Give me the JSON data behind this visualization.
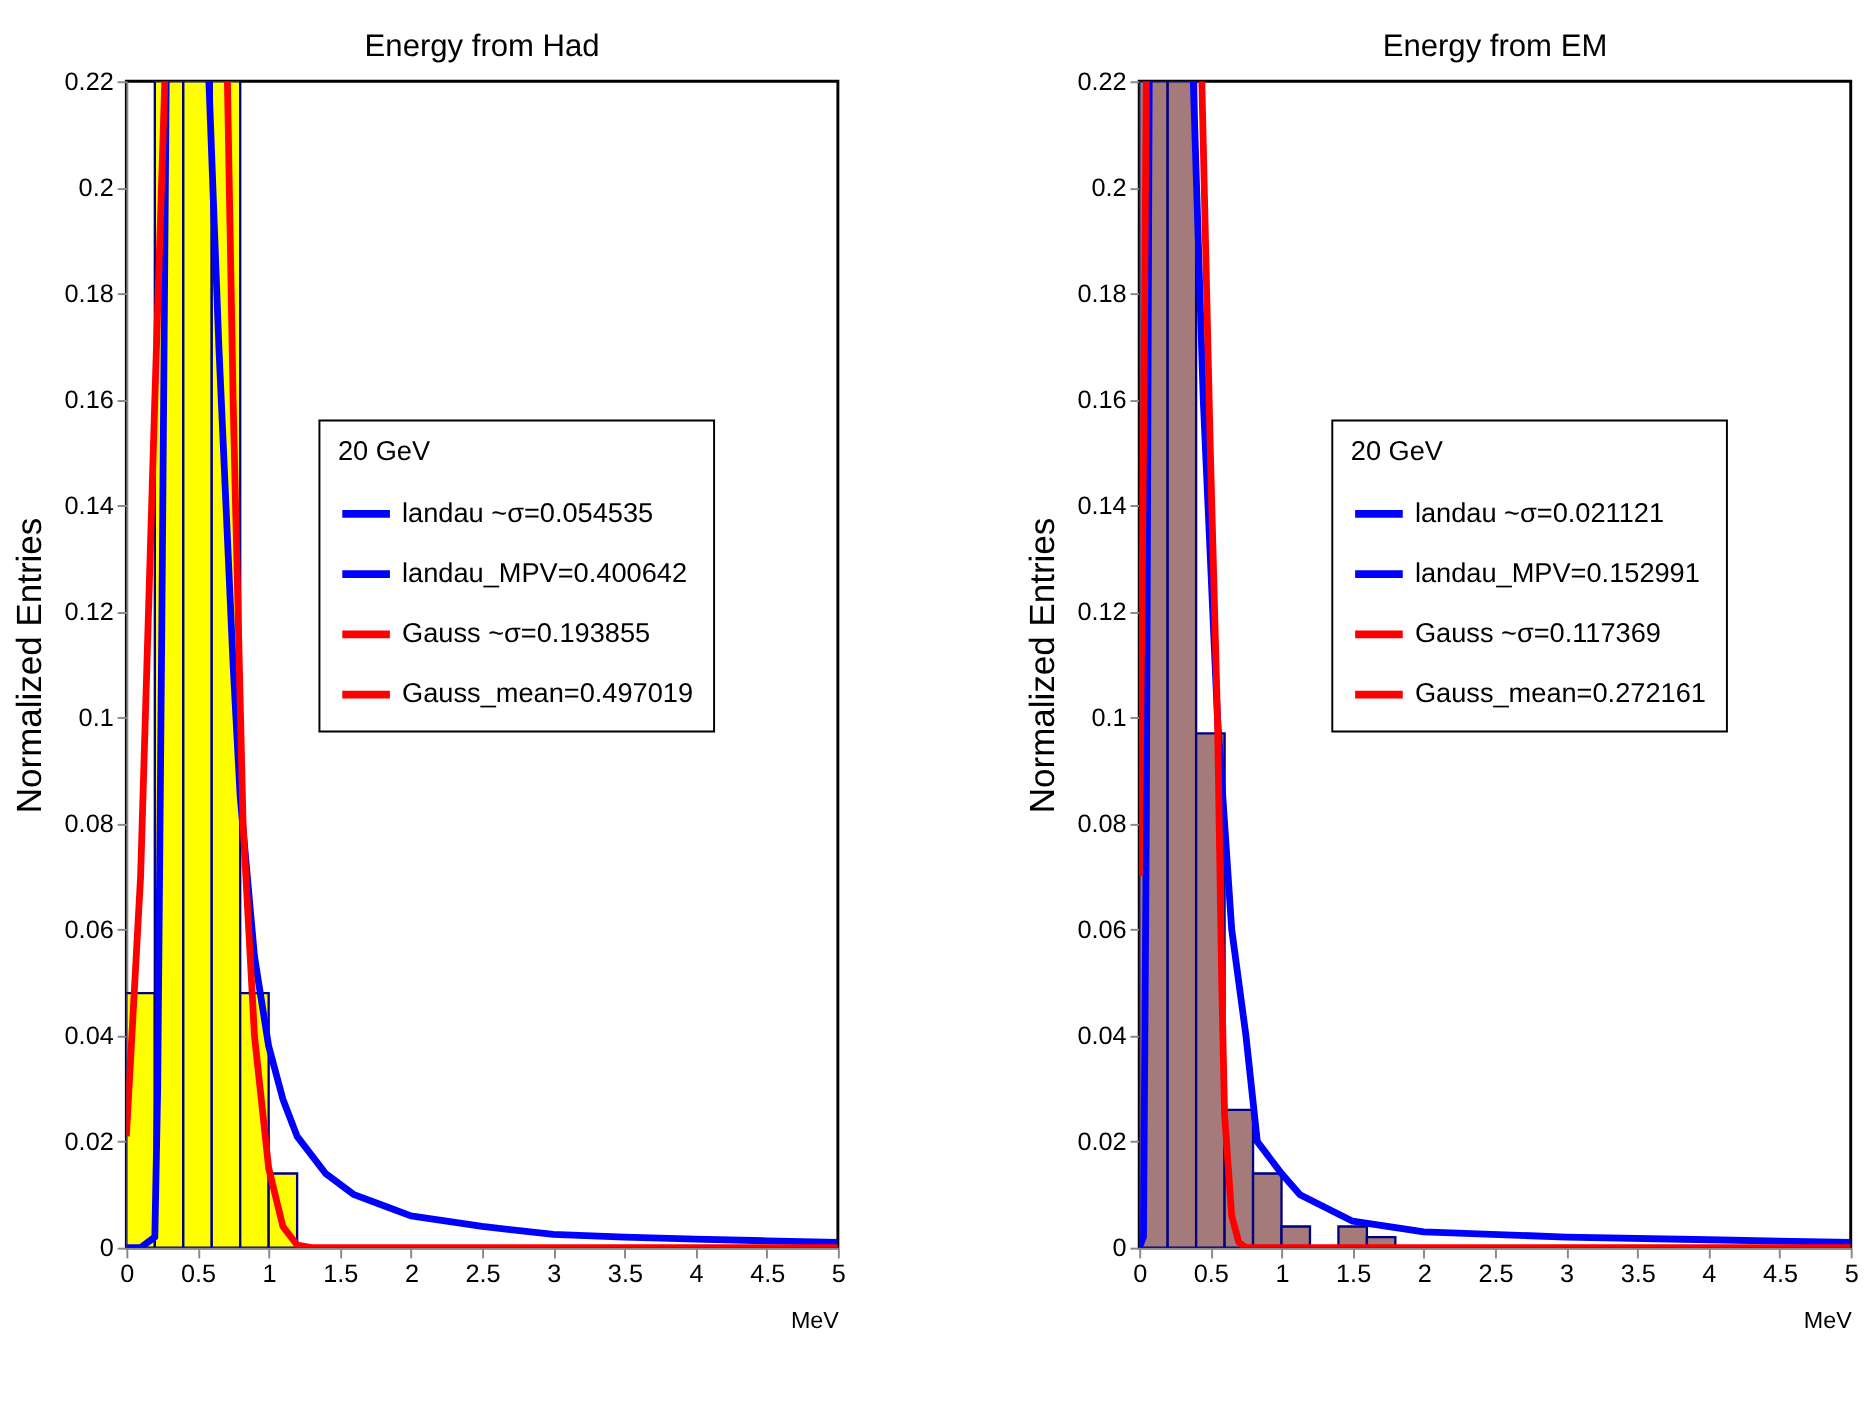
{
  "chart_data": [
    {
      "type": "histogram",
      "title": "Energy from Had",
      "xlabel": "MeV",
      "ylabel": "Normalized Entries",
      "legend_title": "20 GeV",
      "legend": "right",
      "bins": [
        0,
        0.2,
        0.4,
        0.6,
        0.8,
        1.0,
        1.2,
        1.4,
        1.6,
        1.8,
        2.0,
        2.2,
        2.4,
        2.6,
        2.8,
        3.0,
        3.2,
        3.4,
        3.6,
        3.8,
        4.0,
        4.2,
        4.4,
        4.6,
        4.8,
        5.0
      ],
      "values": [
        0.048,
        0.22,
        0.22,
        0.22,
        0.048,
        0.014,
        0,
        0,
        0,
        0,
        0,
        0,
        0,
        0,
        0,
        0,
        0,
        0,
        0,
        0,
        0,
        0,
        0,
        0,
        0
      ],
      "color": "#ffff00",
      "xlim": [
        0,
        5
      ],
      "ylim": [
        0,
        0.22
      ],
      "xticks": [
        0,
        0.5,
        1,
        1.5,
        2,
        2.5,
        3,
        3.5,
        4,
        4.5,
        5
      ],
      "yticks": [
        0,
        0.02,
        0.04,
        0.06,
        0.08,
        0.1,
        0.12,
        0.14,
        0.16,
        0.18,
        0.2,
        0.22
      ],
      "series": [
        {
          "name": "landau ~σ=0.054535",
          "color": "#0000ff",
          "type": "line",
          "x": [
            0,
            0.1,
            0.2,
            0.22,
            0.25,
            0.28,
            0.4,
            0.58,
            0.65,
            0.7,
            0.75,
            0.8,
            0.9,
            1.0,
            1.1,
            1.2,
            1.4,
            1.6,
            1.8,
            2.0,
            2.5,
            3,
            3.5,
            4,
            4.5,
            5
          ],
          "values": [
            0,
            0,
            0.002,
            0.03,
            0.12,
            0.22,
            null,
            0.22,
            0.17,
            0.14,
            0.11,
            0.085,
            0.055,
            0.038,
            0.028,
            0.021,
            0.014,
            0.01,
            0.008,
            0.006,
            0.004,
            0.0025,
            0.002,
            0.0016,
            0.0013,
            0.001
          ]
        },
        {
          "name": "landau_MPV=0.400642",
          "color": "#0000ff",
          "type": "line"
        },
        {
          "name": "Gauss ~σ=0.193855",
          "color": "#ff0000",
          "type": "line",
          "x": [
            0,
            0.1,
            0.2,
            0.27,
            0.5,
            0.71,
            0.75,
            0.82,
            0.9,
            1.0,
            1.1,
            1.2,
            1.3,
            5
          ],
          "values": [
            0.021,
            0.07,
            0.16,
            0.22,
            null,
            0.22,
            0.16,
            0.08,
            0.04,
            0.015,
            0.004,
            0.0005,
            0,
            0
          ]
        },
        {
          "name": "Gauss_mean=0.497019",
          "color": "#ff0000",
          "type": "line"
        }
      ]
    },
    {
      "type": "histogram",
      "title": "Energy from EM",
      "xlabel": "MeV",
      "ylabel": "Normalized Entries",
      "legend_title": "20 GeV",
      "legend": "right",
      "bins": [
        0,
        0.2,
        0.4,
        0.6,
        0.8,
        1.0,
        1.2,
        1.4,
        1.6,
        1.8,
        2.0,
        2.2,
        2.4,
        2.6,
        2.8,
        3.0,
        3.2,
        3.4,
        3.6,
        3.8,
        4.0,
        4.2,
        4.4,
        4.6,
        4.8,
        5.0
      ],
      "values": [
        0.22,
        0.22,
        0.097,
        0.026,
        0.014,
        0.004,
        0,
        0.004,
        0.002,
        0,
        0,
        0,
        0,
        0,
        0,
        0,
        0,
        0,
        0,
        0,
        0,
        0,
        0,
        0,
        0
      ],
      "color": "#a47a7a",
      "xlim": [
        0,
        5
      ],
      "ylim": [
        0,
        0.22
      ],
      "xticks": [
        0,
        0.5,
        1,
        1.5,
        2,
        2.5,
        3,
        3.5,
        4,
        4.5,
        5
      ],
      "yticks": [
        0,
        0.02,
        0.04,
        0.06,
        0.08,
        0.1,
        0.12,
        0.14,
        0.16,
        0.18,
        0.2,
        0.22
      ],
      "series": [
        {
          "name": "landau ~σ=0.021121",
          "color": "#0000ff",
          "type": "line",
          "x": [
            0,
            0.03,
            0.05,
            0.07,
            0.2,
            0.38,
            0.45,
            0.55,
            0.65,
            0.75,
            0.83,
            1.0,
            1.13,
            1.5,
            2.0,
            3,
            4,
            5
          ],
          "values": [
            0,
            0.002,
            0.08,
            0.22,
            null,
            0.22,
            0.16,
            0.1,
            0.06,
            0.04,
            0.02,
            0.014,
            0.01,
            0.005,
            0.003,
            0.002,
            0.0015,
            0.001
          ]
        },
        {
          "name": "landau_MPV=0.152991",
          "color": "#0000ff",
          "type": "line"
        },
        {
          "name": "Gauss ~σ=0.117369",
          "color": "#ff0000",
          "type": "line",
          "x": [
            0,
            0.03,
            0.05,
            0.2,
            0.44,
            0.5,
            0.55,
            0.58,
            0.6,
            0.65,
            0.7,
            0.75,
            5
          ],
          "values": [
            0.07,
            0.15,
            0.22,
            null,
            0.22,
            0.15,
            0.1,
            0.05,
            0.025,
            0.006,
            0.001,
            0,
            0
          ]
        },
        {
          "name": "Gauss_mean=0.272161",
          "color": "#ff0000",
          "type": "line"
        }
      ]
    }
  ]
}
